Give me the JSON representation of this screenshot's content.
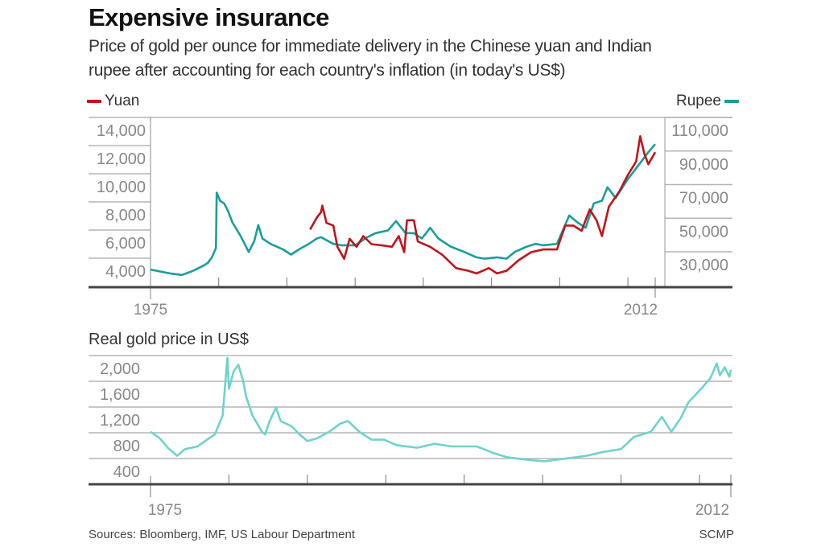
{
  "header": {
    "title": "Expensive insurance",
    "subtitle_line1": "Price of gold per ounce for immediate delivery in the Chinese yuan and Indian",
    "subtitle_line2": "rupee after accounting for each country's inflation (in today's US$)"
  },
  "footer": {
    "sources": "Sources: Bloomberg, IMF, US Labour Department",
    "credit": "SCMP"
  },
  "colors": {
    "yuan": "#c0141b",
    "rupee": "#1a9e9a",
    "real_gold": "#6fd3cc",
    "grid": "#b5b5b5",
    "axis": "#444444"
  },
  "chart_data": [
    {
      "type": "line",
      "title": "",
      "legend": [
        {
          "name": "Yuan",
          "position": "top-left"
        },
        {
          "name": "Rupee",
          "position": "top-right"
        }
      ],
      "x_tick_labels": [
        "1975",
        "2012"
      ],
      "xlim": [
        1975,
        2012
      ],
      "x_ticks_every": 5,
      "y_left": {
        "series": "Yuan",
        "tick_labels": [
          "14,000",
          "12,000",
          "10,000",
          "8,000",
          "6,000",
          "4,000"
        ],
        "ticks": [
          14000,
          12000,
          10000,
          8000,
          6000,
          4000
        ],
        "ylim": [
          2000,
          14000
        ]
      },
      "y_right": {
        "series": "Rupee",
        "tick_labels": [
          "110,000",
          "90,000",
          "70,000",
          "50,000",
          "30,000"
        ],
        "ticks": [
          110000,
          90000,
          70000,
          50000,
          30000
        ]
      },
      "grid": true,
      "series": [
        {
          "name": "Rupee",
          "axis": "right",
          "points": [
            [
              1975.0,
              19400
            ],
            [
              1976.5,
              17000
            ],
            [
              1977.3,
              16200
            ],
            [
              1978.1,
              18600
            ],
            [
              1978.9,
              21800
            ],
            [
              1979.2,
              23400
            ],
            [
              1979.5,
              26700
            ],
            [
              1979.8,
              32300
            ],
            [
              1979.85,
              65200
            ],
            [
              1980.1,
              60400
            ],
            [
              1980.4,
              58800
            ],
            [
              1980.7,
              54000
            ],
            [
              1981.0,
              47500
            ],
            [
              1981.6,
              39500
            ],
            [
              1982.2,
              29900
            ],
            [
              1982.6,
              36300
            ],
            [
              1982.9,
              45900
            ],
            [
              1983.2,
              37900
            ],
            [
              1983.8,
              34700
            ],
            [
              1984.7,
              31500
            ],
            [
              1985.3,
              28300
            ],
            [
              1985.9,
              31500
            ],
            [
              1986.6,
              34700
            ],
            [
              1987.2,
              37900
            ],
            [
              1987.5,
              38700
            ],
            [
              1988.4,
              34700
            ],
            [
              1989.0,
              33900
            ],
            [
              1990.0,
              33900
            ],
            [
              1990.9,
              38700
            ],
            [
              1991.5,
              41100
            ],
            [
              1992.4,
              42700
            ],
            [
              1993.0,
              48300
            ],
            [
              1993.7,
              41100
            ],
            [
              1994.3,
              41100
            ],
            [
              1994.9,
              37900
            ],
            [
              1995.5,
              44300
            ],
            [
              1996.1,
              37900
            ],
            [
              1997.0,
              33100
            ],
            [
              1998.0,
              29900
            ],
            [
              1998.9,
              26700
            ],
            [
              1999.5,
              25900
            ],
            [
              2000.4,
              26700
            ],
            [
              2001.1,
              25900
            ],
            [
              2001.7,
              29900
            ],
            [
              2002.6,
              33100
            ],
            [
              2003.2,
              34700
            ],
            [
              2003.8,
              33900
            ],
            [
              2004.8,
              34700
            ],
            [
              2005.7,
              51600
            ],
            [
              2006.3,
              47500
            ],
            [
              2006.9,
              44300
            ],
            [
              2007.5,
              58800
            ],
            [
              2008.1,
              60400
            ],
            [
              2008.5,
              68400
            ],
            [
              2009.1,
              62000
            ],
            [
              2010.0,
              73300
            ],
            [
              2010.9,
              82900
            ],
            [
              2011.5,
              89300
            ],
            [
              2012.0,
              94100
            ]
          ]
        },
        {
          "name": "Yuan",
          "axis": "left",
          "points": [
            [
              1986.7,
              6040
            ],
            [
              1987.2,
              6890
            ],
            [
              1987.5,
              7270
            ],
            [
              1987.6,
              7740
            ],
            [
              1987.9,
              6510
            ],
            [
              1988.4,
              6320
            ],
            [
              1988.7,
              4810
            ],
            [
              1989.2,
              3960
            ],
            [
              1989.6,
              5380
            ],
            [
              1990.1,
              4810
            ],
            [
              1990.6,
              5570
            ],
            [
              1991.2,
              5000
            ],
            [
              1992.1,
              4900
            ],
            [
              1992.7,
              4810
            ],
            [
              1993.2,
              5570
            ],
            [
              1993.6,
              4430
            ],
            [
              1993.8,
              6700
            ],
            [
              1994.3,
              6700
            ],
            [
              1994.6,
              5190
            ],
            [
              1995.5,
              4810
            ],
            [
              1996.4,
              4240
            ],
            [
              1997.4,
              3300
            ],
            [
              1998.3,
              3110
            ],
            [
              1998.9,
              2920
            ],
            [
              1999.8,
              3300
            ],
            [
              2000.4,
              2920
            ],
            [
              2001.1,
              3110
            ],
            [
              2002.0,
              3860
            ],
            [
              2002.9,
              4430
            ],
            [
              2003.8,
              4620
            ],
            [
              2004.8,
              4620
            ],
            [
              2005.4,
              6320
            ],
            [
              2006.0,
              6320
            ],
            [
              2006.6,
              5950
            ],
            [
              2007.2,
              7460
            ],
            [
              2007.7,
              6700
            ],
            [
              2008.1,
              5570
            ],
            [
              2008.6,
              7650
            ],
            [
              2009.4,
              8790
            ],
            [
              2010.0,
              9920
            ],
            [
              2010.6,
              10870
            ],
            [
              2010.9,
              12670
            ],
            [
              2011.2,
              11440
            ],
            [
              2011.5,
              10680
            ],
            [
              2012.0,
              11530
            ]
          ]
        }
      ]
    },
    {
      "type": "line",
      "title": "Real gold price in US$",
      "x_tick_labels": [
        "1975",
        "2012"
      ],
      "xlim": [
        1975,
        2012
      ],
      "x_ticks_every": 5,
      "y_tick_labels": [
        "2,000",
        "1,600",
        "1,200",
        "800",
        "400"
      ],
      "y_ticks": [
        2000,
        1600,
        1200,
        800,
        400
      ],
      "ylim": [
        0,
        2000
      ],
      "grid": true,
      "series": [
        {
          "points": [
            [
              1975.0,
              816
            ],
            [
              1975.6,
              713
            ],
            [
              1976.1,
              567
            ],
            [
              1976.7,
              442
            ],
            [
              1977.2,
              546
            ],
            [
              1978.0,
              588
            ],
            [
              1978.6,
              692
            ],
            [
              1979.1,
              775
            ],
            [
              1979.6,
              1067
            ],
            [
              1979.9,
              1963
            ],
            [
              1980.0,
              1483
            ],
            [
              1980.3,
              1754
            ],
            [
              1980.6,
              1858
            ],
            [
              1980.9,
              1608
            ],
            [
              1981.1,
              1358
            ],
            [
              1981.5,
              1067
            ],
            [
              1982.1,
              816
            ],
            [
              1982.3,
              775
            ],
            [
              1982.6,
              983
            ],
            [
              1983.0,
              1192
            ],
            [
              1983.3,
              983
            ],
            [
              1984.0,
              900
            ],
            [
              1984.5,
              775
            ],
            [
              1985.0,
              671
            ],
            [
              1985.6,
              713
            ],
            [
              1986.4,
              816
            ],
            [
              1987.1,
              942
            ],
            [
              1987.6,
              983
            ],
            [
              1988.3,
              816
            ],
            [
              1989.1,
              692
            ],
            [
              1989.9,
              692
            ],
            [
              1990.7,
              608
            ],
            [
              1992.0,
              567
            ],
            [
              1993.1,
              629
            ],
            [
              1994.2,
              588
            ],
            [
              1995.8,
              588
            ],
            [
              1996.9,
              483
            ],
            [
              1997.7,
              421
            ],
            [
              1999.1,
              379
            ],
            [
              2000.1,
              358
            ],
            [
              2001.5,
              400
            ],
            [
              2002.8,
              442
            ],
            [
              2003.9,
              504
            ],
            [
              2005.0,
              546
            ],
            [
              2005.8,
              733
            ],
            [
              2006.9,
              816
            ],
            [
              2007.6,
              1046
            ],
            [
              2008.2,
              816
            ],
            [
              2008.8,
              1025
            ],
            [
              2009.3,
              1275
            ],
            [
              2010.1,
              1483
            ],
            [
              2010.7,
              1650
            ],
            [
              2011.1,
              1879
            ],
            [
              2011.3,
              1692
            ],
            [
              2011.6,
              1817
            ],
            [
              2011.9,
              1671
            ],
            [
              2012.0,
              1775
            ]
          ]
        }
      ]
    }
  ]
}
